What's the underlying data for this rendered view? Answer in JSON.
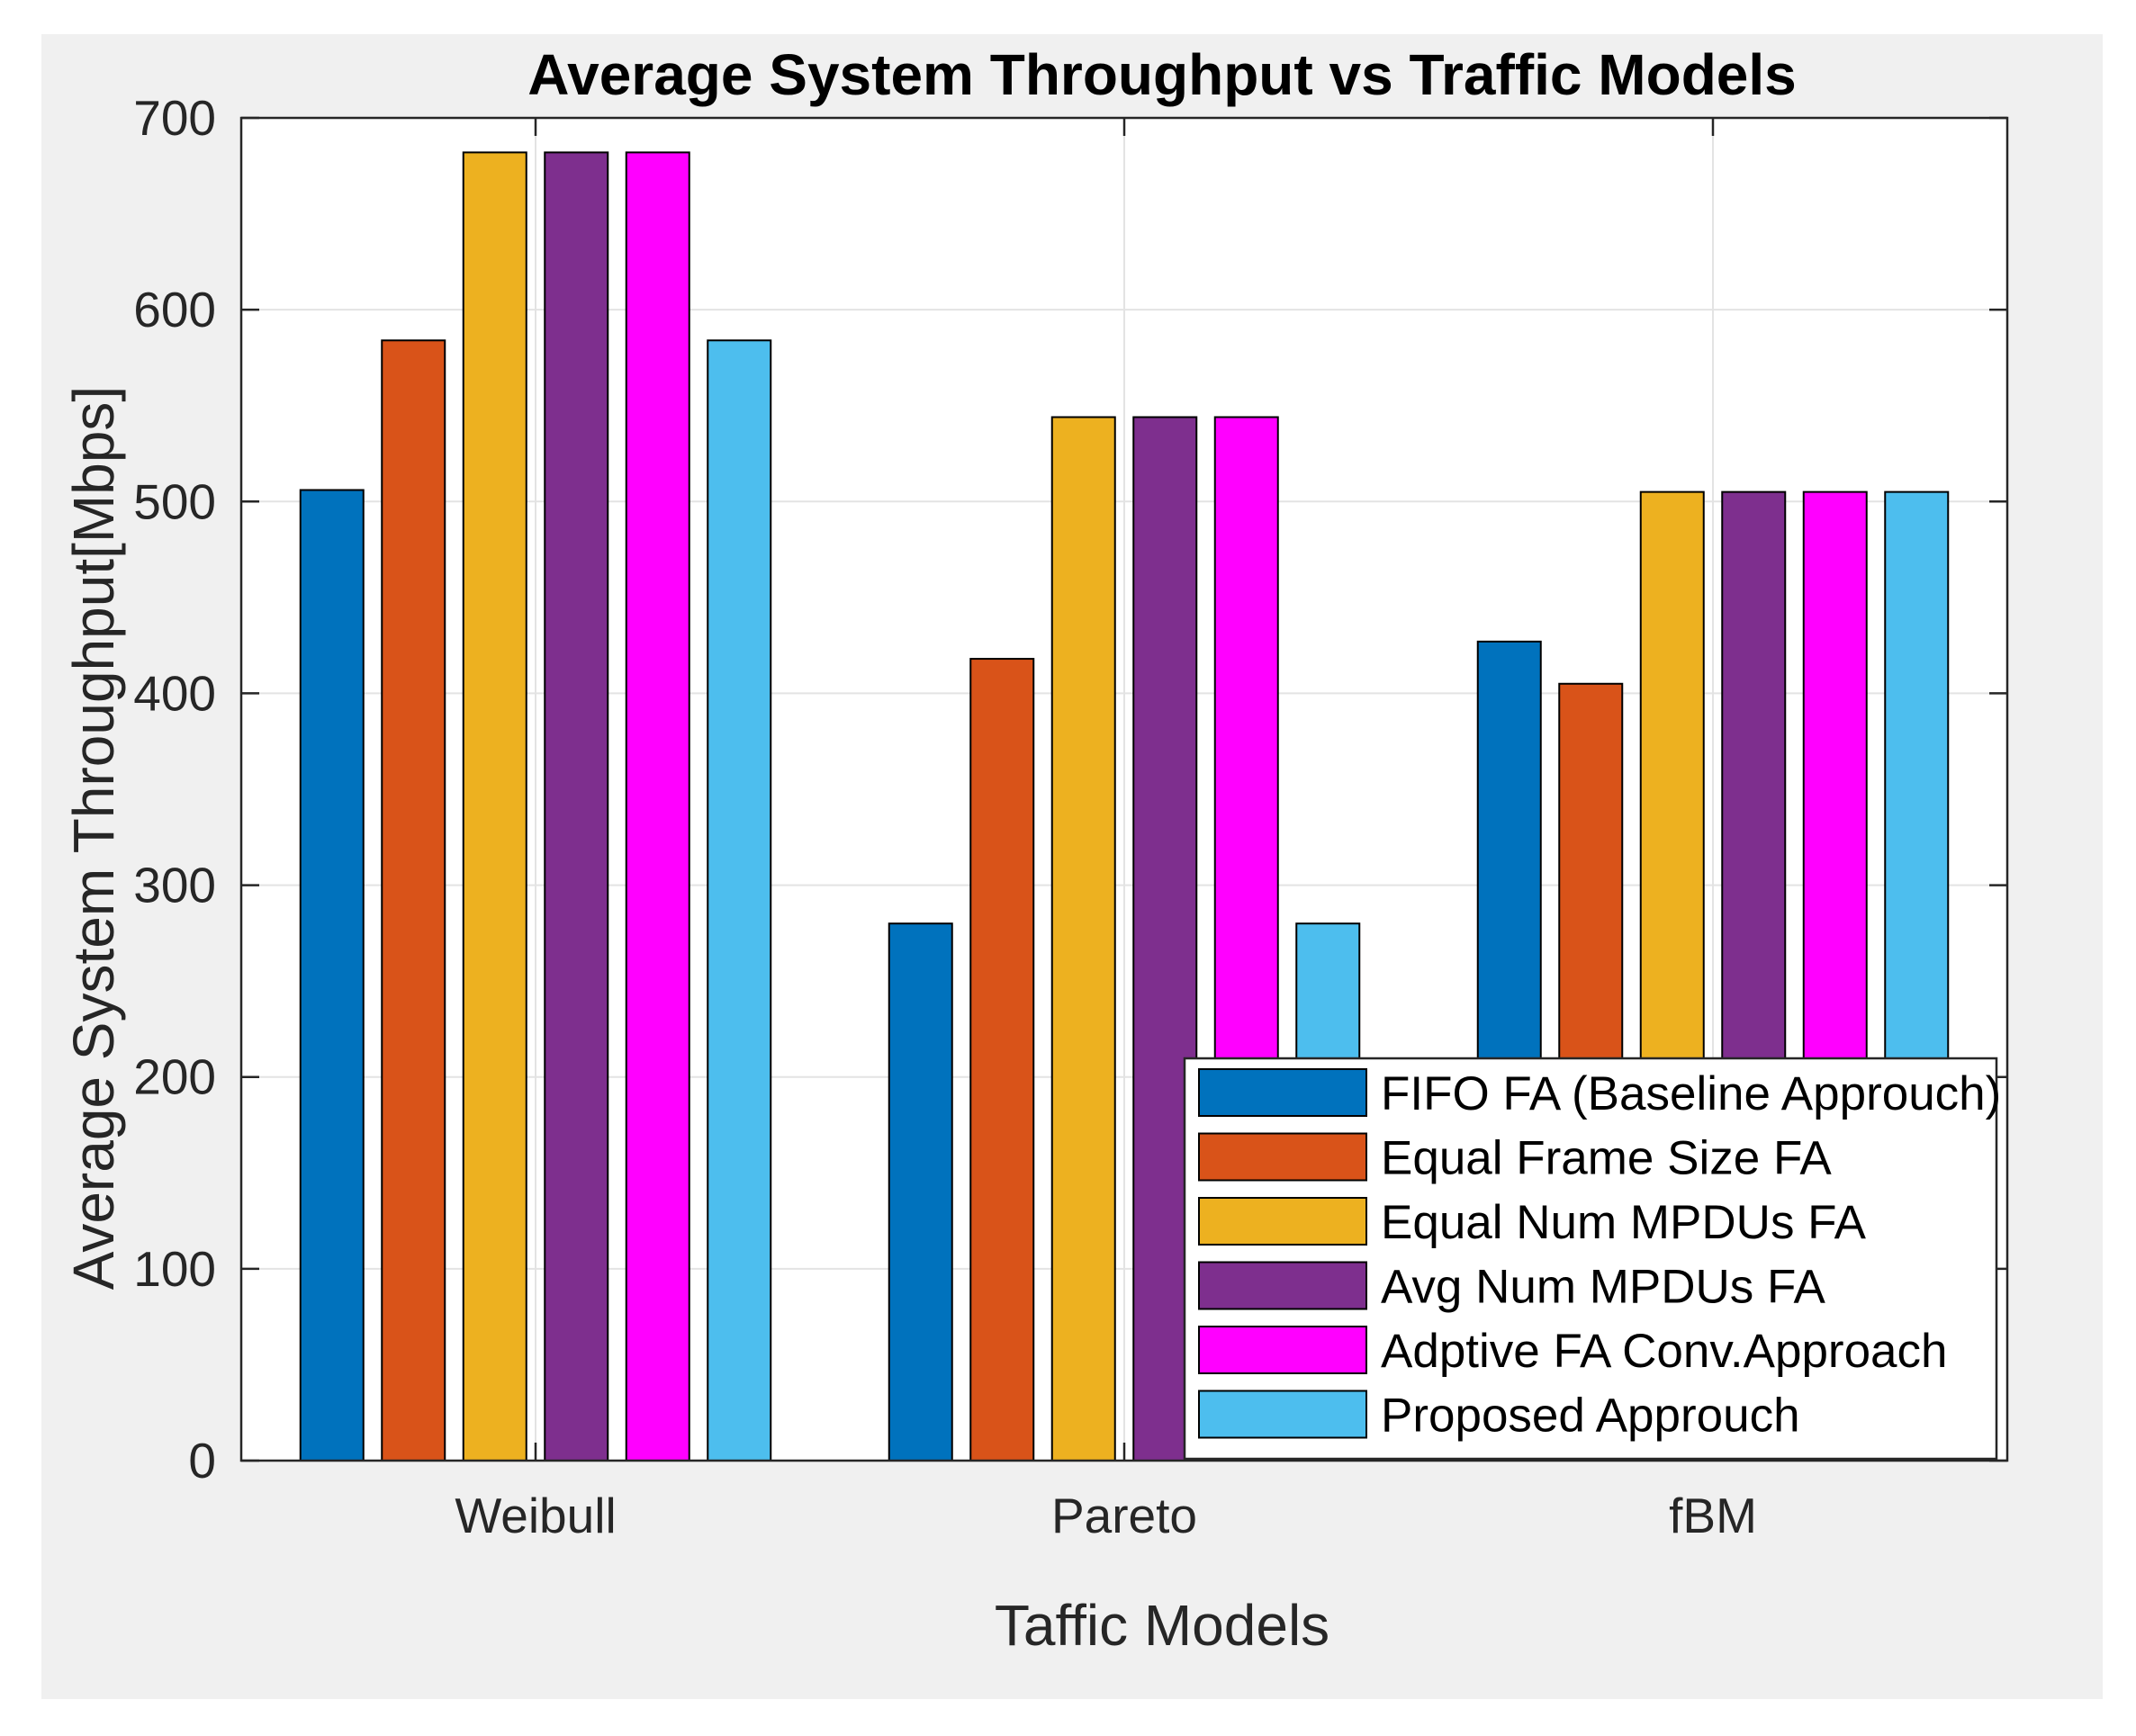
{
  "chart_data": {
    "type": "bar",
    "title": "Average System Throughput vs Traffic Models",
    "xlabel": "Taffic Models",
    "ylabel": "Average System Throughput[Mbps]",
    "categories": [
      "Weibull",
      "Pareto",
      "fBM"
    ],
    "ylim": [
      0,
      700
    ],
    "yticks": [
      0,
      100,
      200,
      300,
      400,
      500,
      600,
      700
    ],
    "grid": true,
    "legend_position": "bottom-right",
    "series": [
      {
        "name": "FIFO FA (Baseline Approuch)",
        "color": "#0072bd",
        "values": [
          506,
          280,
          427
        ]
      },
      {
        "name": "Equal Frame Size FA",
        "color": "#d95319",
        "values": [
          584,
          418,
          405
        ]
      },
      {
        "name": "Equal Num MPDUs FA",
        "color": "#edb120",
        "values": [
          682,
          544,
          505
        ]
      },
      {
        "name": "Avg Num MPDUs FA",
        "color": "#7e2f8e",
        "values": [
          682,
          544,
          505
        ]
      },
      {
        "name": "Adptive FA Conv.Approach",
        "color": "#ff00ff",
        "values": [
          682,
          544,
          505
        ]
      },
      {
        "name": "Proposed Approuch",
        "color": "#4dbeee",
        "values": [
          584,
          280,
          505
        ]
      }
    ]
  }
}
